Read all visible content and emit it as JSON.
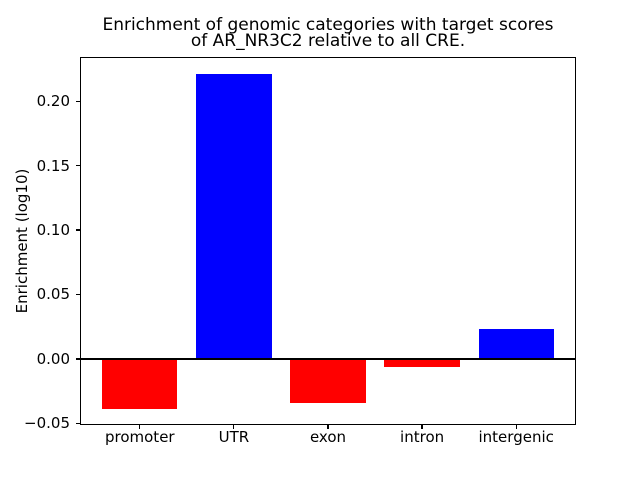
{
  "figure": {
    "background_color": "#ffffff",
    "text_color": "#000000"
  },
  "chart_data": {
    "type": "bar",
    "title": "Enrichment of genomic categories with target scores\nof AR_NR3C2 relative to all CRE.",
    "xlabel": "",
    "ylabel": "Enrichment (log10)",
    "categories": [
      "promoter",
      "UTR",
      "exon",
      "intron",
      "intergenic"
    ],
    "values": [
      -0.039,
      0.221,
      -0.034,
      -0.006,
      0.023
    ],
    "bar_colors": [
      "#ff0000",
      "#0000ff",
      "#ff0000",
      "#ff0000",
      "#0000ff"
    ],
    "color_meaning": {
      "positive": "#0000ff",
      "negative": "#ff0000"
    },
    "bar_width": 0.8,
    "xlim": [
      -0.625,
      4.625
    ],
    "ylim": [
      -0.0505,
      0.2335
    ],
    "yticks": [
      {
        "value": -0.05,
        "label": "−0.05"
      },
      {
        "value": 0.0,
        "label": "0.00"
      },
      {
        "value": 0.05,
        "label": "0.05"
      },
      {
        "value": 0.1,
        "label": "0.10"
      },
      {
        "value": 0.15,
        "label": "0.15"
      },
      {
        "value": 0.2,
        "label": "0.20"
      }
    ],
    "zero_line": {
      "show": true,
      "color": "#000000"
    },
    "grid": false,
    "legend": null
  }
}
